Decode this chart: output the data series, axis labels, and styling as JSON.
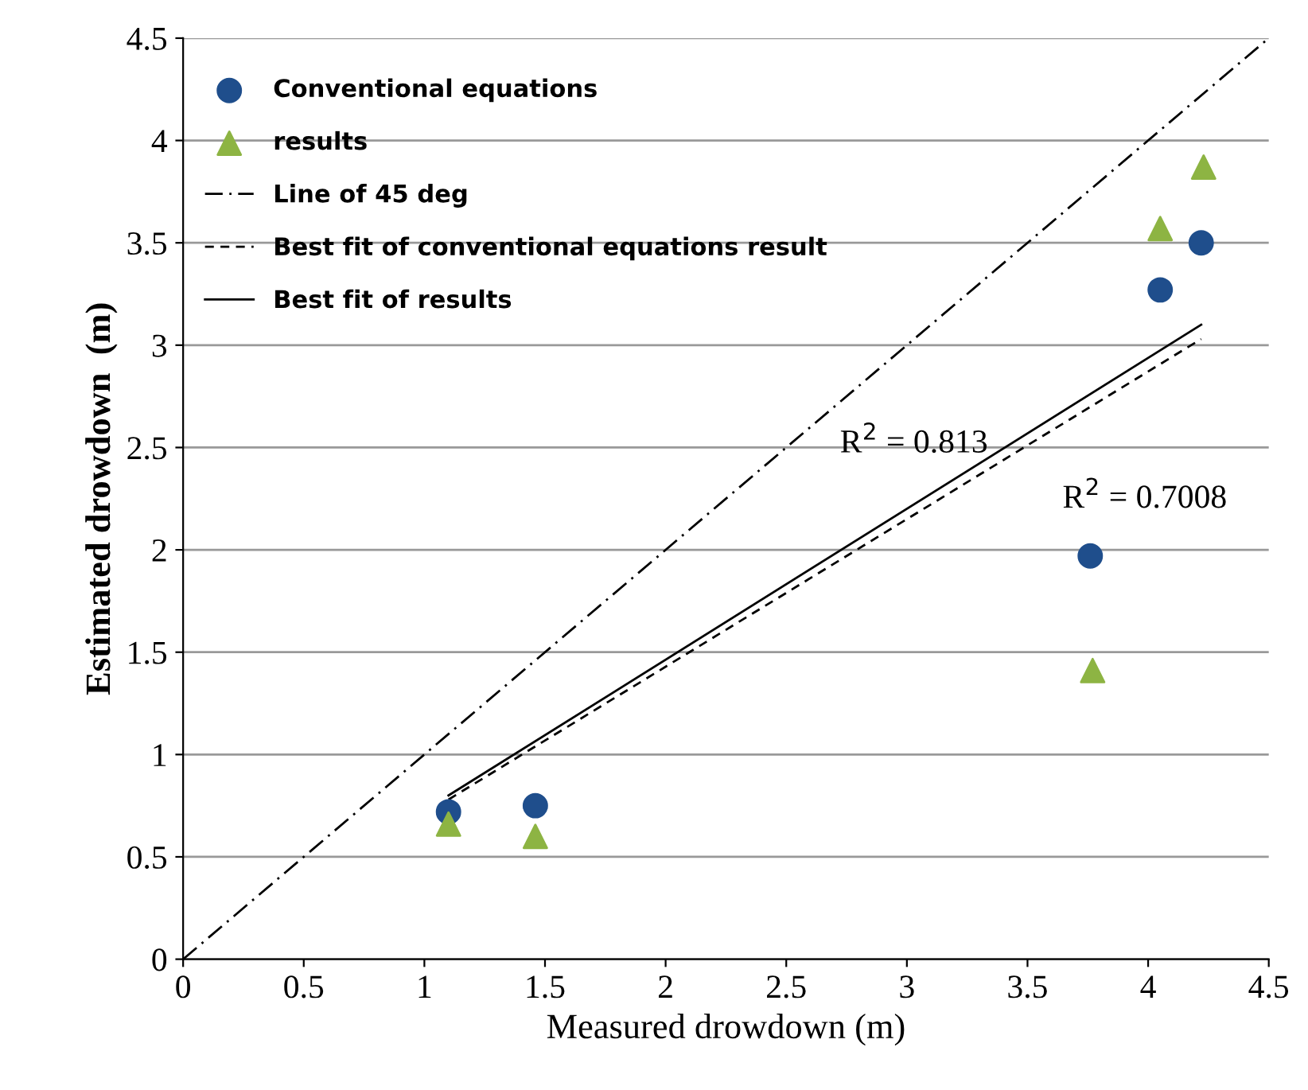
{
  "chart_data": {
    "type": "scatter",
    "xlabel": "Measured drowdown (m)",
    "ylabel": "Estimated drowdown  (m)",
    "series": [
      {
        "name": "Conventional equations",
        "marker": "circle",
        "color": "#1f4e8c",
        "x": [
          1.1,
          1.46,
          3.76,
          4.05,
          4.22
        ],
        "values": [
          0.72,
          0.75,
          1.97,
          3.27,
          3.5
        ]
      },
      {
        "name": "results",
        "marker": "triangle",
        "color": "#8db443",
        "x": [
          1.1,
          1.46,
          3.77,
          4.05,
          4.23
        ],
        "values": [
          0.66,
          0.6,
          1.41,
          3.57,
          3.87
        ]
      },
      {
        "name": "Line of 45 deg",
        "type": "line",
        "line_style": "dashdot",
        "color": "#000000",
        "x": [
          0,
          4.5
        ],
        "values": [
          0,
          4.5
        ]
      },
      {
        "name": "Best fit of conventional equations result",
        "type": "line",
        "line_style": "dashed",
        "color": "#000000",
        "x": [
          1.1,
          4.22
        ],
        "values": [
          0.78,
          3.03
        ]
      },
      {
        "name": "Best fit of results",
        "type": "line",
        "line_style": "solid",
        "color": "#000000",
        "x": [
          1.1,
          4.22
        ],
        "values": [
          0.8,
          3.1
        ]
      }
    ],
    "annotations": [
      "R$^{2}$ = 0.813",
      "R$^{2}$ = 0.7008"
    ],
    "xlim": [
      0,
      4.5
    ],
    "xticks": [
      0,
      0.5,
      1,
      1.5,
      2,
      2.5,
      3,
      3.5,
      4,
      4.5
    ],
    "ylim": [
      0,
      4.5
    ],
    "yticks": [
      0,
      0.5,
      1,
      1.5,
      2,
      2.5,
      3,
      3.5,
      4,
      4.5
    ],
    "grid": "y",
    "legend": "top left"
  }
}
